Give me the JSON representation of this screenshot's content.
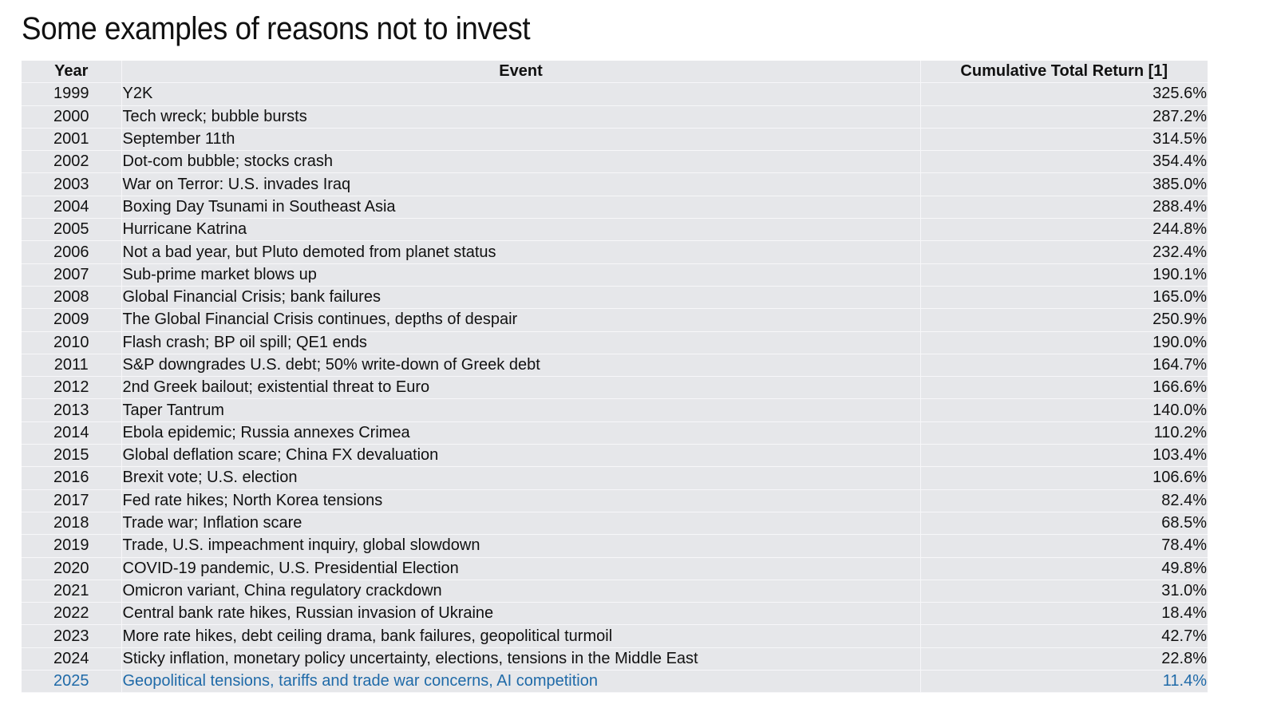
{
  "title": "Some examples of reasons not to invest",
  "table": {
    "headers": {
      "year": "Year",
      "event": "Event",
      "return": "Cumulative Total Return [1]"
    },
    "highlight_color": "#1f6aa8",
    "rows": [
      {
        "year": "1999",
        "event": "Y2K",
        "return": "325.6%"
      },
      {
        "year": "2000",
        "event": "Tech wreck; bubble bursts",
        "return": "287.2%"
      },
      {
        "year": "2001",
        "event": "September 11th",
        "return": "314.5%"
      },
      {
        "year": "2002",
        "event": "Dot-com bubble; stocks crash",
        "return": "354.4%"
      },
      {
        "year": "2003",
        "event": "War on Terror: U.S. invades Iraq",
        "return": "385.0%"
      },
      {
        "year": "2004",
        "event": "Boxing Day Tsunami in Southeast Asia",
        "return": "288.4%"
      },
      {
        "year": "2005",
        "event": "Hurricane Katrina",
        "return": "244.8%"
      },
      {
        "year": "2006",
        "event": "Not a bad year, but Pluto demoted from planet status",
        "return": "232.4%"
      },
      {
        "year": "2007",
        "event": "Sub-prime market blows up",
        "return": "190.1%"
      },
      {
        "year": "2008",
        "event": "Global Financial Crisis; bank failures",
        "return": "165.0%"
      },
      {
        "year": "2009",
        "event": "The Global Financial Crisis continues, depths of despair",
        "return": "250.9%"
      },
      {
        "year": "2010",
        "event": "Flash crash; BP oil spill; QE1 ends",
        "return": "190.0%"
      },
      {
        "year": "2011",
        "event": "S&P downgrades U.S. debt; 50% write-down of Greek debt",
        "return": "164.7%"
      },
      {
        "year": "2012",
        "event": "2nd Greek bailout; existential threat to Euro",
        "return": "166.6%"
      },
      {
        "year": "2013",
        "event": "Taper Tantrum",
        "return": "140.0%"
      },
      {
        "year": "2014",
        "event": "Ebola epidemic; Russia annexes Crimea",
        "return": "110.2%"
      },
      {
        "year": "2015",
        "event": "Global deflation scare; China FX devaluation",
        "return": "103.4%"
      },
      {
        "year": "2016",
        "event": "Brexit vote; U.S. election",
        "return": "106.6%"
      },
      {
        "year": "2017",
        "event": "Fed rate hikes; North Korea tensions",
        "return": "82.4%"
      },
      {
        "year": "2018",
        "event": "Trade war; Inflation scare",
        "return": "68.5%"
      },
      {
        "year": "2019",
        "event": "Trade, U.S. impeachment inquiry, global slowdown",
        "return": "78.4%"
      },
      {
        "year": "2020",
        "event": "COVID-19 pandemic, U.S. Presidential Election",
        "return": "49.8%"
      },
      {
        "year": "2021",
        "event": "Omicron variant, China regulatory crackdown",
        "return": "31.0%"
      },
      {
        "year": "2022",
        "event": "Central bank rate hikes, Russian invasion of Ukraine",
        "return": "18.4%"
      },
      {
        "year": "2023",
        "event": "More rate hikes, debt ceiling drama, bank failures, geopolitical turmoil",
        "return": "42.7%"
      },
      {
        "year": "2024",
        "event": "Sticky inflation, monetary policy uncertainty, elections, tensions in the Middle East",
        "return": "22.8%"
      },
      {
        "year": "2025",
        "event": "Geopolitical tensions, tariffs and trade war concerns, AI competition",
        "return": "11.4%",
        "highlight": true
      }
    ]
  }
}
